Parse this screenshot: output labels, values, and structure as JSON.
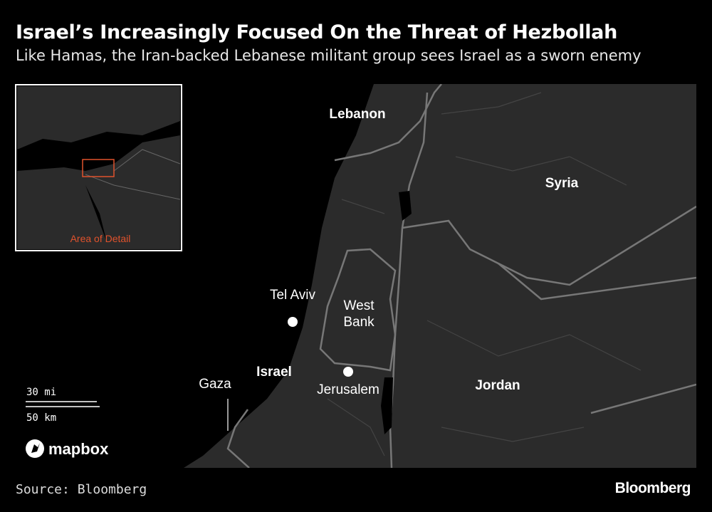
{
  "header": {
    "title": "Israel’s Increasingly Focused On the Threat of Hezbollah",
    "subtitle": "Like Hamas, the Iran-backed Lebanese militant group sees Israel as a sworn enemy"
  },
  "map": {
    "places": [
      "Lebanon",
      "Syria",
      "Tel Aviv",
      "West Bank",
      "Israel",
      "Jerusalem",
      "Gaza",
      "Jordan"
    ]
  },
  "inset": {
    "label": "Area of Detail"
  },
  "scale": {
    "miles": "30 mi",
    "km": "50 km"
  },
  "attribution": "mapbox",
  "footer": {
    "source": "Source: Bloomberg",
    "brand": "Bloomberg"
  }
}
